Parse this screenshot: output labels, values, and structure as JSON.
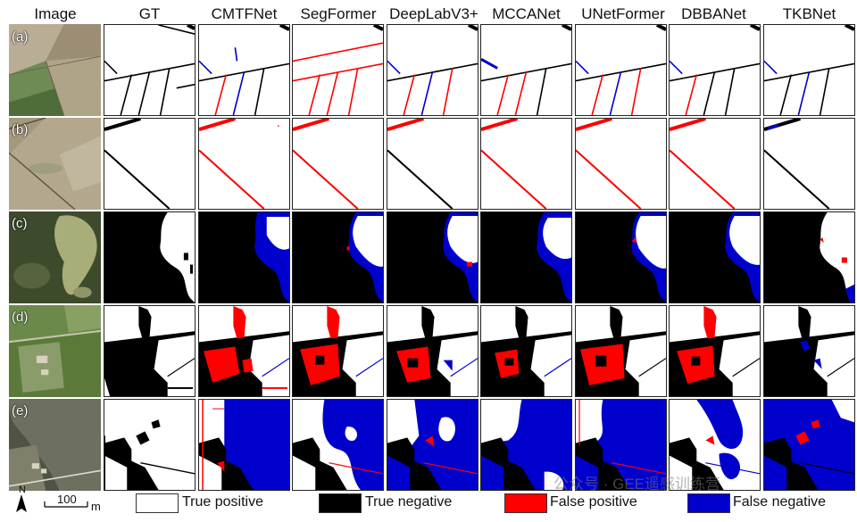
{
  "headers": [
    "Image",
    "GT",
    "CMTFNet",
    "SegFormer",
    "DeepLabV3+",
    "MCCANet",
    "UNetFormer",
    "DBBANet",
    "TKBNet"
  ],
  "row_labels": [
    "(a)",
    "(b)",
    "(c)",
    "(d)",
    "(e)"
  ],
  "legend": [
    {
      "label": "True positive",
      "color": "#ffffff"
    },
    {
      "label": "True negative",
      "color": "#000000"
    },
    {
      "label": "False positive",
      "color": "#ff0000"
    },
    {
      "label": "False negative",
      "color": "#0000cc"
    }
  ],
  "scale": {
    "north": "N",
    "value": "100",
    "unit": "m"
  },
  "watermark": "公众号 · GEE遥感训练营",
  "colors": {
    "tp": "#ffffff",
    "tn": "#000000",
    "fp": "#ff0000",
    "fn": "#0000cc"
  }
}
